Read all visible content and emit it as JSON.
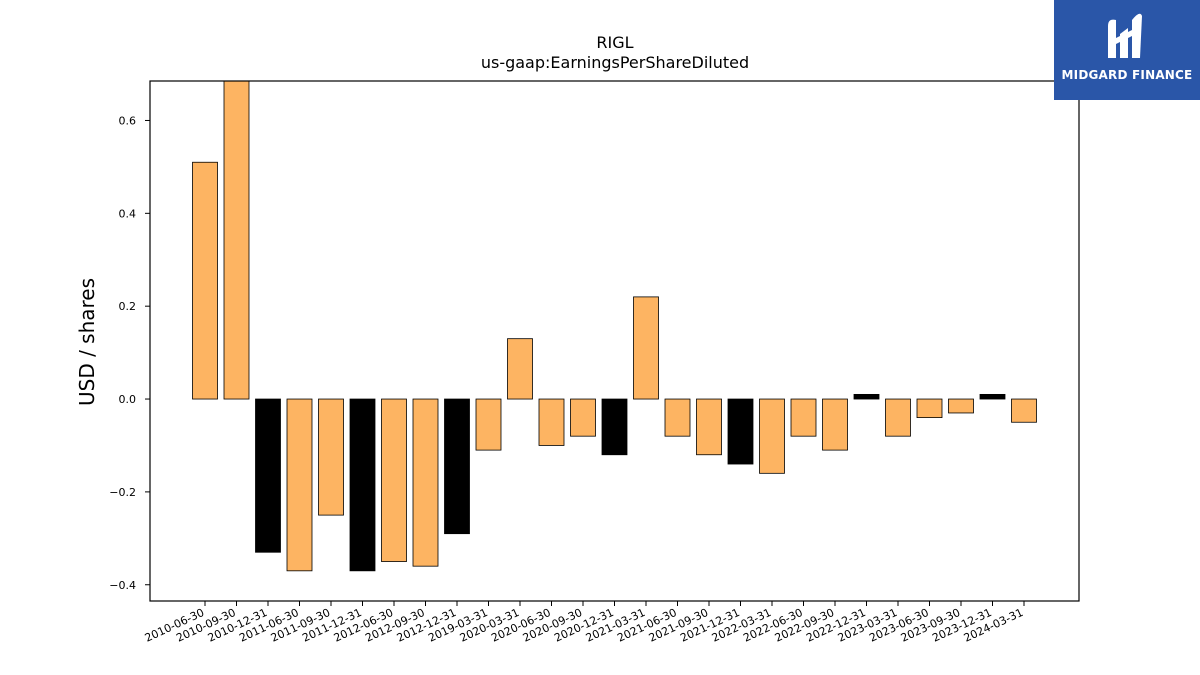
{
  "chart_data": {
    "type": "bar",
    "title": "RIGL",
    "subtitle": "us-gaap:EarningsPerShareDiluted",
    "xlabel": "",
    "ylabel": "USD / shares",
    "ylim": [
      -0.435,
      0.685
    ],
    "yticks": [
      -0.4,
      -0.2,
      0.0,
      0.2,
      0.4,
      0.6
    ],
    "ytick_labels": [
      "−0.4",
      "−0.2",
      "0.0",
      "0.2",
      "0.4",
      "0.6"
    ],
    "grid": false,
    "colors": {
      "default": "#fdb462",
      "highlight": "#000000",
      "edge": "#000000"
    },
    "categories": [
      "2010-06-30",
      "2010-09-30",
      "2010-12-31",
      "2011-06-30",
      "2011-09-30",
      "2011-12-31",
      "2012-06-30",
      "2012-09-30",
      "2012-12-31",
      "2019-03-31",
      "2020-03-31",
      "2020-06-30",
      "2020-09-30",
      "2020-12-31",
      "2021-03-31",
      "2021-06-30",
      "2021-09-30",
      "2021-12-31",
      "2022-03-31",
      "2022-06-30",
      "2022-09-30",
      "2022-12-31",
      "2023-03-31",
      "2023-06-30",
      "2023-09-30",
      "2023-12-31",
      "2024-03-31"
    ],
    "values": [
      0.51,
      0.69,
      -0.33,
      -0.37,
      -0.25,
      -0.37,
      -0.35,
      -0.36,
      -0.29,
      -0.11,
      0.13,
      -0.1,
      -0.08,
      -0.12,
      0.22,
      -0.08,
      -0.12,
      -0.14,
      -0.16,
      -0.08,
      -0.11,
      0.01,
      -0.08,
      -0.04,
      -0.03,
      0.01,
      -0.05
    ],
    "highlighted": [
      false,
      false,
      true,
      false,
      false,
      true,
      false,
      false,
      true,
      false,
      false,
      false,
      false,
      true,
      false,
      false,
      false,
      true,
      false,
      false,
      false,
      true,
      false,
      false,
      false,
      true,
      false
    ]
  },
  "logo": {
    "text": "MIDGARD FINANCE",
    "icon": "midgard-logo-icon",
    "background": "#2a56a8"
  }
}
